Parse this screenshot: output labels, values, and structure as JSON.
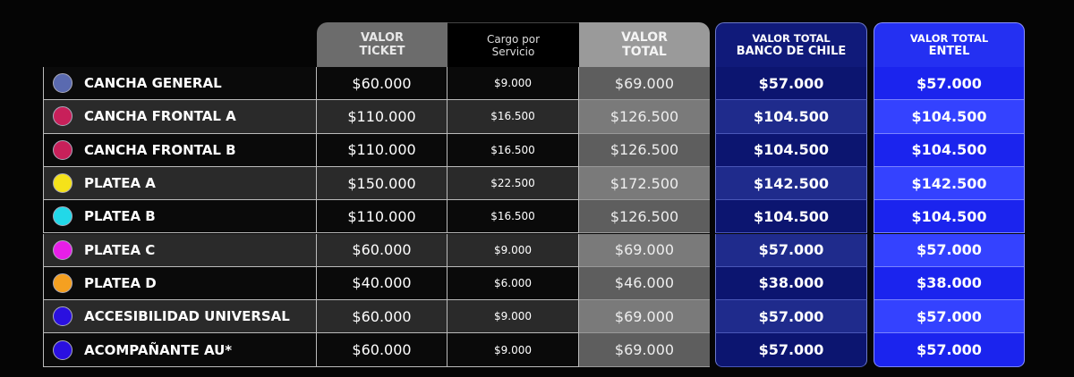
{
  "headers": {
    "ticket": [
      "VALOR",
      "TICKET"
    ],
    "cargo": [
      "Cargo por",
      "Servicio"
    ],
    "total": [
      "VALOR",
      "TOTAL"
    ],
    "banco": [
      "VALOR TOTAL",
      "BANCO DE CHILE"
    ],
    "entel": [
      "VALOR TOTAL",
      "ENTEL"
    ]
  },
  "rows": [
    {
      "name": "CANCHA GENERAL",
      "color": "#5a6ab0",
      "ticket": "$60.000",
      "cargo": "$9.000",
      "total": "$69.000",
      "banco": "$57.000",
      "entel": "$57.000"
    },
    {
      "name": "CANCHA FRONTAL A",
      "color": "#c8205a",
      "ticket": "$110.000",
      "cargo": "$16.500",
      "total": "$126.500",
      "banco": "$104.500",
      "entel": "$104.500"
    },
    {
      "name": "CANCHA FRONTAL B",
      "color": "#c8205a",
      "ticket": "$110.000",
      "cargo": "$16.500",
      "total": "$126.500",
      "banco": "$104.500",
      "entel": "$104.500"
    },
    {
      "name": "PLATEA A",
      "color": "#f5e21a",
      "ticket": "$150.000",
      "cargo": "$22.500",
      "total": "$172.500",
      "banco": "$142.500",
      "entel": "$142.500"
    },
    {
      "name": "PLATEA B",
      "color": "#22d8e8",
      "ticket": "$110.000",
      "cargo": "$16.500",
      "total": "$126.500",
      "banco": "$104.500",
      "entel": "$104.500"
    },
    {
      "name": "PLATEA C",
      "color": "#e81ee8",
      "ticket": "$60.000",
      "cargo": "$9.000",
      "total": "$69.000",
      "banco": "$57.000",
      "entel": "$57.000"
    },
    {
      "name": "PLATEA D",
      "color": "#f5a020",
      "ticket": "$40.000",
      "cargo": "$6.000",
      "total": "$46.000",
      "banco": "$38.000",
      "entel": "$38.000"
    },
    {
      "name": "ACCESIBILIDAD UNIVERSAL",
      "color": "#2a10e0",
      "ticket": "$60.000",
      "cargo": "$9.000",
      "total": "$69.000",
      "banco": "$57.000",
      "entel": "$57.000"
    },
    {
      "name": "ACOMPAÑANTE AU*",
      "color": "#2a10e0",
      "ticket": "$60.000",
      "cargo": "$9.000",
      "total": "$69.000",
      "banco": "$57.000",
      "entel": "$57.000"
    }
  ]
}
